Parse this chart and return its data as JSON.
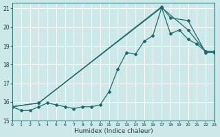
{
  "xlabel": "Humidex (Indice chaleur)",
  "xlim": [
    0,
    23
  ],
  "ylim": [
    15,
    21.3
  ],
  "yticks": [
    15,
    16,
    17,
    18,
    19,
    20,
    21
  ],
  "xticks": [
    0,
    1,
    2,
    3,
    4,
    5,
    6,
    7,
    8,
    9,
    10,
    11,
    12,
    13,
    14,
    15,
    16,
    17,
    18,
    19,
    20,
    21,
    22,
    23
  ],
  "background_color": "#cde8e8",
  "grid_color": "#b0d4d4",
  "line_color": "#1a6b6b",
  "line1_x": [
    0,
    1,
    2,
    3,
    4,
    5,
    6,
    7,
    8,
    9,
    10,
    11,
    12,
    13,
    14,
    15,
    16,
    17,
    18,
    19,
    20,
    21,
    22,
    23
  ],
  "line1_y": [
    15.75,
    15.55,
    15.55,
    15.75,
    15.95,
    15.85,
    15.75,
    15.65,
    15.75,
    15.75,
    15.85,
    16.55,
    17.75,
    18.65,
    18.55,
    19.25,
    19.55,
    21.05,
    19.65,
    19.85,
    19.35,
    19.1,
    18.7,
    18.7
  ],
  "line2_x": [
    0,
    3,
    17,
    20,
    22,
    23
  ],
  "line2_y": [
    15.75,
    15.95,
    21.05,
    19.85,
    18.7,
    18.7
  ],
  "line3_x": [
    0,
    3,
    17,
    18,
    20,
    22,
    23
  ],
  "line3_y": [
    15.75,
    15.95,
    21.1,
    20.5,
    20.35,
    18.65,
    18.65
  ]
}
